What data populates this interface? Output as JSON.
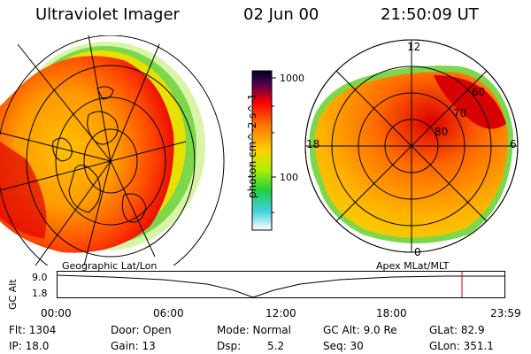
{
  "header": {
    "instrument": "Ultraviolet Imager",
    "date": "02 Jun 00",
    "time": "21:50:09 UT"
  },
  "left_panel": {
    "caption": "Geographic Lat/Lon"
  },
  "right_panel": {
    "caption": "Apex MLat/MLT",
    "mlt_labels": {
      "top": "12",
      "left": "18",
      "right": "6",
      "bottom": "0"
    },
    "lat_labels": [
      "60",
      "70",
      "80"
    ]
  },
  "colorbar": {
    "label": "photon cm^-2 s^-1",
    "ticks": [
      "1000",
      "100"
    ]
  },
  "timeline": {
    "y_label": "GC Alt",
    "y_ticks": [
      "9.0",
      "1.8"
    ],
    "x_ticks": [
      "00:00",
      "06:00",
      "12:00",
      "18:00",
      "23:59"
    ]
  },
  "status": {
    "row1": {
      "flt": "Flt: 1304",
      "door": "Door: Open",
      "mode": "Mode: Normal",
      "gcalt": "GC Alt: 9.0 Re",
      "glat": "GLat: 82.9"
    },
    "row2": {
      "ip": "IP: 18.0",
      "gain": "Gain: 13",
      "dsp_label": "Dsp:",
      "dsp_value": "5.2",
      "seq": "Seq: 30",
      "glon": "GLon: 351.1"
    }
  }
}
